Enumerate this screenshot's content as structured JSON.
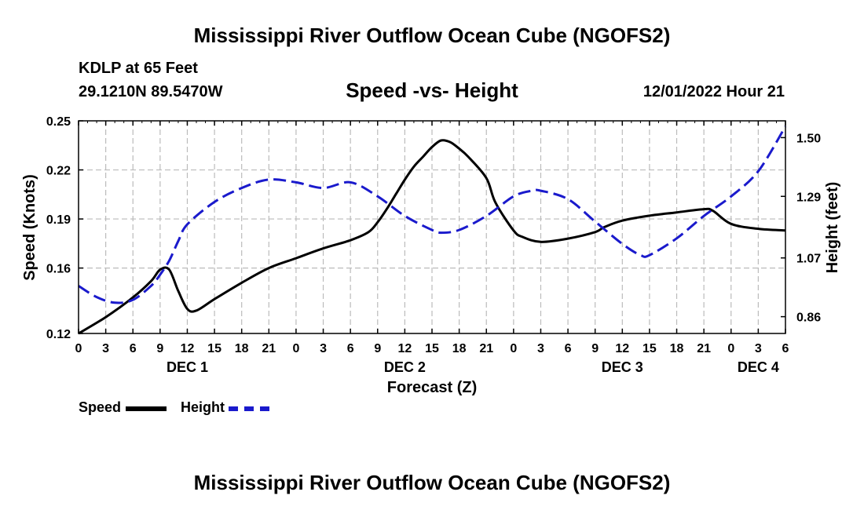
{
  "header": {
    "title": "Mississippi River Outflow Ocean Cube (NGOFS2)",
    "station": "KDLP at 65 Feet",
    "coords": "29.1210N  89.5470W",
    "chart_title": "Speed -vs- Height",
    "datetime": "12/01/2022 Hour 21"
  },
  "footer": {
    "title": "Mississippi River Outflow Ocean Cube (NGOFS2)"
  },
  "legend": {
    "speed_label": "Speed",
    "height_label": "Height"
  },
  "colors": {
    "speed": "#000000",
    "height": "#1a1acc",
    "grid": "#bbbbbb"
  },
  "chart_data": {
    "type": "line",
    "title": "Speed -vs- Height",
    "xlabel": "Forecast (Z)",
    "ylabel": "Speed (Knots)",
    "y2label": "Height (feet)",
    "x_unit": "hours from 12/01 00Z",
    "xlim": [
      0,
      78
    ],
    "x_ticks": [
      0,
      3,
      6,
      9,
      12,
      15,
      18,
      21,
      24,
      27,
      30,
      33,
      36,
      39,
      42,
      45,
      48,
      51,
      54,
      57,
      60,
      63,
      66,
      69,
      72,
      75,
      78
    ],
    "x_tick_labels": [
      "0",
      "3",
      "6",
      "9",
      "12",
      "15",
      "18",
      "21",
      "0",
      "3",
      "6",
      "9",
      "12",
      "15",
      "18",
      "21",
      "0",
      "3",
      "6",
      "9",
      "12",
      "15",
      "18",
      "21",
      "0",
      "3",
      "6"
    ],
    "day_labels": [
      {
        "x": 12,
        "label": "DEC 1"
      },
      {
        "x": 36,
        "label": "DEC 2"
      },
      {
        "x": 60,
        "label": "DEC 3"
      },
      {
        "x": 75,
        "label": "DEC 4"
      }
    ],
    "ylim": [
      0.12,
      0.25
    ],
    "y_ticks": [
      0.12,
      0.16,
      0.19,
      0.22,
      0.25
    ],
    "y_tick_labels": [
      "0.12",
      "0.16",
      "0.19",
      "0.22",
      "0.25"
    ],
    "y2lim": [
      0.8,
      1.56
    ],
    "y2_ticks": [
      0.86,
      1.07,
      1.29,
      1.5
    ],
    "y2_tick_labels": [
      "0.86",
      "1.07",
      "1.29",
      "1.50"
    ],
    "legend_position": "bottom-left",
    "series": [
      {
        "name": "Speed",
        "axis": "left",
        "style": "solid",
        "x": [
          0,
          3,
          6,
          8,
          9,
          10,
          11,
          12,
          13,
          15,
          18,
          21,
          24,
          27,
          30,
          32,
          33,
          34,
          35,
          36,
          37,
          38,
          39,
          40,
          41,
          42,
          43,
          45,
          46,
          48,
          49,
          51,
          54,
          57,
          58,
          60,
          63,
          66,
          69,
          70,
          72,
          75,
          78
        ],
        "y": [
          0.12,
          0.13,
          0.142,
          0.152,
          0.159,
          0.159,
          0.146,
          0.135,
          0.134,
          0.141,
          0.151,
          0.16,
          0.166,
          0.172,
          0.177,
          0.182,
          0.188,
          0.196,
          0.205,
          0.214,
          0.222,
          0.228,
          0.234,
          0.238,
          0.237,
          0.233,
          0.228,
          0.215,
          0.2,
          0.183,
          0.179,
          0.176,
          0.178,
          0.182,
          0.185,
          0.189,
          0.192,
          0.194,
          0.196,
          0.195,
          0.187,
          0.184,
          0.183
        ]
      },
      {
        "name": "Height",
        "axis": "right",
        "style": "dashed",
        "x": [
          0,
          2,
          4,
          6,
          8,
          9,
          10,
          11,
          12,
          15,
          18,
          21,
          24,
          27,
          30,
          33,
          36,
          39,
          40,
          42,
          45,
          48,
          50,
          51,
          54,
          57,
          60,
          62,
          63,
          66,
          69,
          72,
          75,
          78
        ],
        "y": [
          0.97,
          0.93,
          0.91,
          0.92,
          0.97,
          1.01,
          1.06,
          1.13,
          1.19,
          1.27,
          1.32,
          1.35,
          1.34,
          1.32,
          1.34,
          1.29,
          1.22,
          1.17,
          1.16,
          1.17,
          1.22,
          1.29,
          1.31,
          1.31,
          1.28,
          1.2,
          1.12,
          1.08,
          1.08,
          1.14,
          1.22,
          1.29,
          1.38,
          1.54
        ]
      }
    ]
  }
}
